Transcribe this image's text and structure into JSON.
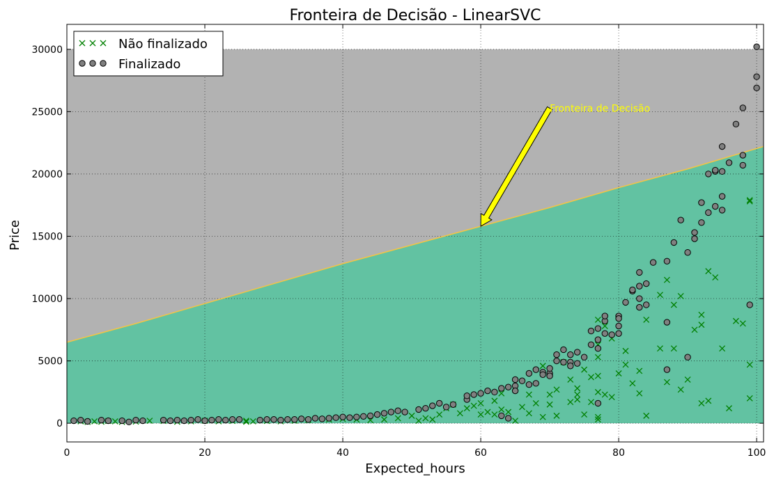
{
  "chart_data": {
    "type": "scatter",
    "title": "Fronteira de Decisão - LinearSVC",
    "xlabel": "Expected_hours",
    "ylabel": "Price",
    "xlim": [
      0,
      101
    ],
    "ylim": [
      -1500,
      32000
    ],
    "xticks": [
      0,
      20,
      40,
      60,
      80,
      100
    ],
    "yticks": [
      0,
      5000,
      10000,
      15000,
      20000,
      25000,
      30000
    ],
    "grid": true,
    "legend_position": "top-left",
    "regions": {
      "x_range": [
        0,
        101
      ],
      "y_range": [
        0,
        30000
      ],
      "upper_color": "#b2b2b2",
      "lower_color": "#62c2a2",
      "boundary_color": "#f5c542"
    },
    "decision_boundary": {
      "x": [
        0,
        10,
        20,
        30,
        40,
        50,
        60,
        70,
        80,
        90,
        101
      ],
      "y": [
        6500,
        8000,
        9600,
        11200,
        12800,
        14300,
        15800,
        17300,
        18900,
        20400,
        22200
      ]
    },
    "annotation": {
      "text": "Fronteira de Decisão",
      "text_color": "#ffff00",
      "arrow_color": "#ffff00",
      "text_x": 70,
      "text_y": 25000,
      "point_x": 60,
      "point_y": 15800
    },
    "series": [
      {
        "name": "Não finalizado",
        "marker": "x",
        "color": "#008000",
        "points": [
          [
            2,
            150
          ],
          [
            3,
            100
          ],
          [
            4,
            150
          ],
          [
            5,
            120
          ],
          [
            6,
            180
          ],
          [
            7,
            150
          ],
          [
            8,
            100
          ],
          [
            10,
            130
          ],
          [
            12,
            200
          ],
          [
            14,
            180
          ],
          [
            16,
            120
          ],
          [
            18,
            150
          ],
          [
            20,
            200
          ],
          [
            22,
            150
          ],
          [
            24,
            180
          ],
          [
            26,
            120
          ],
          [
            26,
            200
          ],
          [
            27,
            150
          ],
          [
            29,
            180
          ],
          [
            31,
            150
          ],
          [
            33,
            200
          ],
          [
            35,
            250
          ],
          [
            38,
            300
          ],
          [
            40,
            350
          ],
          [
            42,
            300
          ],
          [
            44,
            250
          ],
          [
            46,
            300
          ],
          [
            48,
            400
          ],
          [
            50,
            600
          ],
          [
            51,
            200
          ],
          [
            52,
            400
          ],
          [
            53,
            300
          ],
          [
            54,
            700
          ],
          [
            55,
            1200
          ],
          [
            56,
            1500
          ],
          [
            57,
            800
          ],
          [
            58,
            1200
          ],
          [
            59,
            1400
          ],
          [
            60,
            1600
          ],
          [
            60,
            700
          ],
          [
            61,
            900
          ],
          [
            62,
            1800
          ],
          [
            62,
            700
          ],
          [
            63,
            1100
          ],
          [
            63,
            2400
          ],
          [
            64,
            900
          ],
          [
            65,
            200
          ],
          [
            66,
            1300
          ],
          [
            67,
            800
          ],
          [
            67,
            2300
          ],
          [
            68,
            1600
          ],
          [
            69,
            500
          ],
          [
            69,
            4600
          ],
          [
            70,
            2300
          ],
          [
            70,
            1500
          ],
          [
            71,
            600
          ],
          [
            71,
            2700
          ],
          [
            72,
            4900
          ],
          [
            73,
            1700
          ],
          [
            73,
            3500
          ],
          [
            74,
            2800
          ],
          [
            74,
            2300
          ],
          [
            74,
            1900
          ],
          [
            75,
            4300
          ],
          [
            75,
            700
          ],
          [
            76,
            3700
          ],
          [
            76,
            1700
          ],
          [
            77,
            3800
          ],
          [
            77,
            2500
          ],
          [
            77,
            500
          ],
          [
            77,
            300
          ],
          [
            77,
            5300
          ],
          [
            77,
            6300
          ],
          [
            77,
            8300
          ],
          [
            78,
            2300
          ],
          [
            78,
            7800
          ],
          [
            79,
            2100
          ],
          [
            79,
            6800
          ],
          [
            80,
            4000
          ],
          [
            81,
            4700
          ],
          [
            81,
            5800
          ],
          [
            82,
            3200
          ],
          [
            83,
            4200
          ],
          [
            83,
            2400
          ],
          [
            84,
            8300
          ],
          [
            84,
            600
          ],
          [
            86,
            6000
          ],
          [
            86,
            10300
          ],
          [
            87,
            3300
          ],
          [
            87,
            11500
          ],
          [
            88,
            9500
          ],
          [
            88,
            6000
          ],
          [
            89,
            2700
          ],
          [
            89,
            10200
          ],
          [
            90,
            3500
          ],
          [
            91,
            7500
          ],
          [
            92,
            1600
          ],
          [
            92,
            7900
          ],
          [
            92,
            8700
          ],
          [
            93,
            12200
          ],
          [
            93,
            1800
          ],
          [
            94,
            11700
          ],
          [
            95,
            6000
          ],
          [
            96,
            1200
          ],
          [
            97,
            8200
          ],
          [
            98,
            8000
          ],
          [
            99,
            4700
          ],
          [
            99,
            2000
          ],
          [
            99,
            17800
          ],
          [
            99,
            17900
          ]
        ]
      },
      {
        "name": "Finalizado",
        "marker": "o",
        "color": "#808080",
        "points": [
          [
            1,
            200
          ],
          [
            2,
            250
          ],
          [
            3,
            150
          ],
          [
            5,
            250
          ],
          [
            6,
            200
          ],
          [
            8,
            200
          ],
          [
            9,
            100
          ],
          [
            10,
            250
          ],
          [
            11,
            200
          ],
          [
            14,
            250
          ],
          [
            15,
            200
          ],
          [
            16,
            250
          ],
          [
            17,
            200
          ],
          [
            18,
            250
          ],
          [
            19,
            300
          ],
          [
            20,
            200
          ],
          [
            21,
            250
          ],
          [
            22,
            300
          ],
          [
            23,
            250
          ],
          [
            24,
            300
          ],
          [
            25,
            300
          ],
          [
            28,
            250
          ],
          [
            29,
            300
          ],
          [
            30,
            300
          ],
          [
            31,
            250
          ],
          [
            32,
            300
          ],
          [
            33,
            300
          ],
          [
            34,
            350
          ],
          [
            35,
            300
          ],
          [
            36,
            400
          ],
          [
            37,
            350
          ],
          [
            38,
            400
          ],
          [
            39,
            450
          ],
          [
            40,
            500
          ],
          [
            41,
            450
          ],
          [
            42,
            500
          ],
          [
            43,
            550
          ],
          [
            44,
            600
          ],
          [
            45,
            700
          ],
          [
            46,
            800
          ],
          [
            47,
            900
          ],
          [
            48,
            1000
          ],
          [
            49,
            900
          ],
          [
            51,
            1100
          ],
          [
            52,
            1200
          ],
          [
            53,
            1400
          ],
          [
            54,
            1600
          ],
          [
            55,
            1300
          ],
          [
            56,
            1500
          ],
          [
            58,
            1900
          ],
          [
            58,
            2200
          ],
          [
            59,
            2300
          ],
          [
            60,
            2400
          ],
          [
            61,
            2600
          ],
          [
            62,
            2500
          ],
          [
            63,
            2800
          ],
          [
            63,
            600
          ],
          [
            64,
            2900
          ],
          [
            64,
            400
          ],
          [
            65,
            3500
          ],
          [
            65,
            3000
          ],
          [
            65,
            2600
          ],
          [
            66,
            3400
          ],
          [
            67,
            3100
          ],
          [
            67,
            4000
          ],
          [
            68,
            3200
          ],
          [
            68,
            4300
          ],
          [
            69,
            4100
          ],
          [
            69,
            3900
          ],
          [
            70,
            4000
          ],
          [
            70,
            3800
          ],
          [
            70,
            4400
          ],
          [
            71,
            5000
          ],
          [
            71,
            5500
          ],
          [
            72,
            4900
          ],
          [
            72,
            5900
          ],
          [
            73,
            4900
          ],
          [
            73,
            4600
          ],
          [
            73,
            5500
          ],
          [
            74,
            5700
          ],
          [
            74,
            4800
          ],
          [
            75,
            5300
          ],
          [
            76,
            6300
          ],
          [
            76,
            7400
          ],
          [
            77,
            6000
          ],
          [
            77,
            1600
          ],
          [
            77,
            7600
          ],
          [
            77,
            6700
          ],
          [
            78,
            8200
          ],
          [
            78,
            8600
          ],
          [
            78,
            7200
          ],
          [
            79,
            7100
          ],
          [
            80,
            7800
          ],
          [
            80,
            8600
          ],
          [
            80,
            8400
          ],
          [
            80,
            7200
          ],
          [
            81,
            9700
          ],
          [
            82,
            10600
          ],
          [
            82,
            10700
          ],
          [
            83,
            10000
          ],
          [
            83,
            11000
          ],
          [
            83,
            12100
          ],
          [
            83,
            9300
          ],
          [
            84,
            9500
          ],
          [
            84,
            11200
          ],
          [
            85,
            12900
          ],
          [
            87,
            13000
          ],
          [
            87,
            8100
          ],
          [
            87,
            4300
          ],
          [
            88,
            14500
          ],
          [
            89,
            16300
          ],
          [
            90,
            13700
          ],
          [
            90,
            5300
          ],
          [
            91,
            15300
          ],
          [
            91,
            14800
          ],
          [
            92,
            16100
          ],
          [
            92,
            17700
          ],
          [
            93,
            16900
          ],
          [
            93,
            20000
          ],
          [
            94,
            20200
          ],
          [
            94,
            17400
          ],
          [
            94,
            20300
          ],
          [
            95,
            18200
          ],
          [
            95,
            22200
          ],
          [
            95,
            20200
          ],
          [
            95,
            17100
          ],
          [
            96,
            20900
          ],
          [
            97,
            24000
          ],
          [
            98,
            21500
          ],
          [
            98,
            20700
          ],
          [
            98,
            25300
          ],
          [
            99,
            9500
          ],
          [
            100,
            27800
          ],
          [
            100,
            26900
          ],
          [
            100,
            30200
          ]
        ]
      }
    ]
  }
}
